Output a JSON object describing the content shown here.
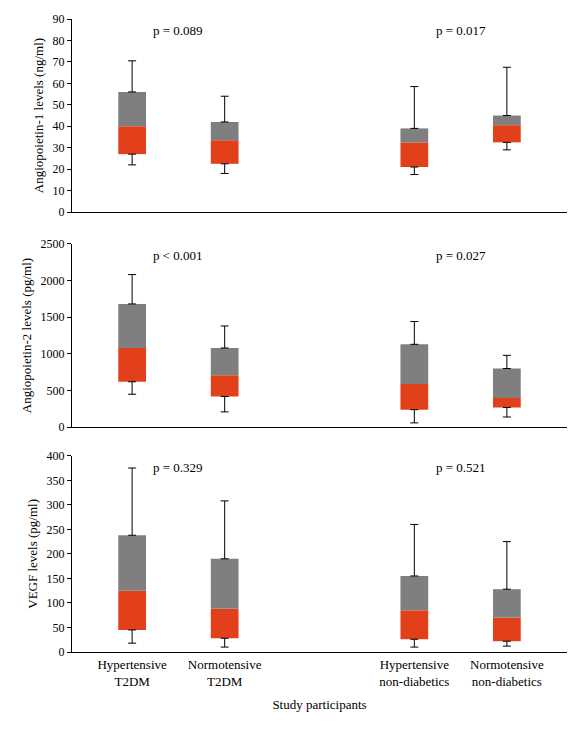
{
  "chart_data": [
    {
      "type": "box",
      "y_label": "Angiopoietin-1 levels (ng/ml)",
      "categories": [
        "Hypertensive T2DM",
        "Normotensive T2DM",
        "Hypertensive non-diabetics",
        "Normotensive non-diabetics"
      ],
      "min": [
        22,
        18,
        17.5,
        29
      ],
      "q1": [
        27,
        22.5,
        21,
        32.5
      ],
      "median": [
        40,
        33.5,
        32.5,
        40.5
      ],
      "q3": [
        56,
        42,
        39,
        45
      ],
      "max": [
        70.5,
        54,
        58.5,
        67.5
      ],
      "annotations": [
        "p = 0.089",
        "p = 0.017"
      ],
      "ylim": [
        0,
        90
      ],
      "yticks": [
        0,
        10,
        20,
        30,
        40,
        50,
        60,
        70,
        80,
        90
      ],
      "colors": [
        "#e2401a",
        "#7f7f7f"
      ],
      "grid": false,
      "tick_labels": "y"
    },
    {
      "type": "box",
      "y_label": "Angiopoietin-2 levels (pg/ml)",
      "categories": [
        "Hypertensive T2DM",
        "Normotensive T2DM",
        "Hypertensive non-diabetics",
        "Normotensive non-diabetics"
      ],
      "min": [
        450,
        210,
        60,
        140
      ],
      "q1": [
        620,
        420,
        240,
        270
      ],
      "median": [
        1080,
        710,
        590,
        400
      ],
      "q3": [
        1680,
        1080,
        1130,
        800
      ],
      "max": [
        2080,
        1380,
        1440,
        980
      ],
      "annotations": [
        "p < 0.001",
        "p = 0.027"
      ],
      "ylim": [
        0,
        2500
      ],
      "yticks": [
        0,
        500,
        1000,
        1500,
        2000,
        2500
      ],
      "colors": [
        "#e2401a",
        "#7f7f7f"
      ],
      "grid": false,
      "tick_labels": "y"
    },
    {
      "type": "box",
      "y_label": "VEGF levels (pg/ml)",
      "x_label": "Study participants",
      "categories": [
        "Hypertensive T2DM",
        "Normotensive T2DM",
        "Hypertensive non-diabetics",
        "Normotensive non-diabetics"
      ],
      "min": [
        18,
        10,
        10,
        12
      ],
      "q1": [
        45,
        28,
        26,
        22
      ],
      "median": [
        125,
        88,
        85,
        70
      ],
      "q3": [
        238,
        190,
        155,
        128
      ],
      "max": [
        375,
        308,
        260,
        225
      ],
      "annotations": [
        "p = 0.329",
        "p = 0.521"
      ],
      "ylim": [
        0,
        400
      ],
      "yticks": [
        0,
        50,
        100,
        150,
        200,
        250,
        300,
        350,
        400
      ],
      "colors": [
        "#e2401a",
        "#7f7f7f"
      ],
      "grid": false
    }
  ]
}
